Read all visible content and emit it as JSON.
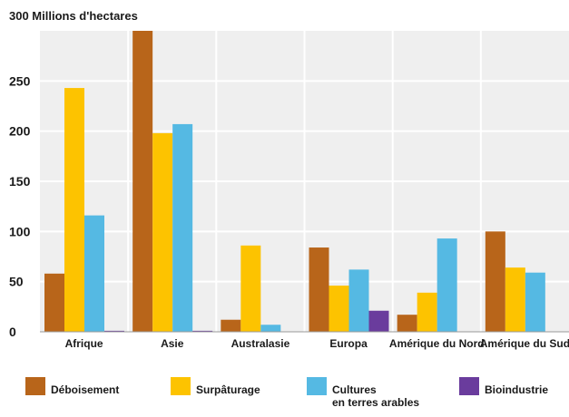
{
  "chart_data": {
    "type": "bar",
    "title": "",
    "ylabel": "300 Millions d'hectares",
    "xlabel": "",
    "ylim": [
      0,
      300
    ],
    "yticks": [
      "0",
      "50",
      "100",
      "150",
      "200",
      "250"
    ],
    "grid": true,
    "legend_position": "bottom",
    "categories": [
      "Afrique",
      "Asie",
      "Australasie",
      "Europa",
      "Amérique du Nord",
      "Amérique du Sud"
    ],
    "series": [
      {
        "name": "Déboisement",
        "color": "#b8651a",
        "values": [
          58,
          300,
          12,
          84,
          17,
          100
        ]
      },
      {
        "name": "Surpâturage",
        "color": "#fdc300",
        "values": [
          243,
          198,
          86,
          46,
          39,
          64
        ]
      },
      {
        "name": "Cultures en terres arables",
        "color": "#55b9e3",
        "values": [
          116,
          207,
          7,
          62,
          93,
          59
        ]
      },
      {
        "name": "Bioindustrie",
        "color": "#6a3c9d",
        "values": [
          1,
          1,
          0,
          21,
          0,
          0
        ]
      }
    ],
    "legend_lines": [
      [
        "Déboisement"
      ],
      [
        "Surpâturage"
      ],
      [
        "Cultures",
        "en terres arables"
      ],
      [
        "Bioindustrie"
      ]
    ]
  }
}
